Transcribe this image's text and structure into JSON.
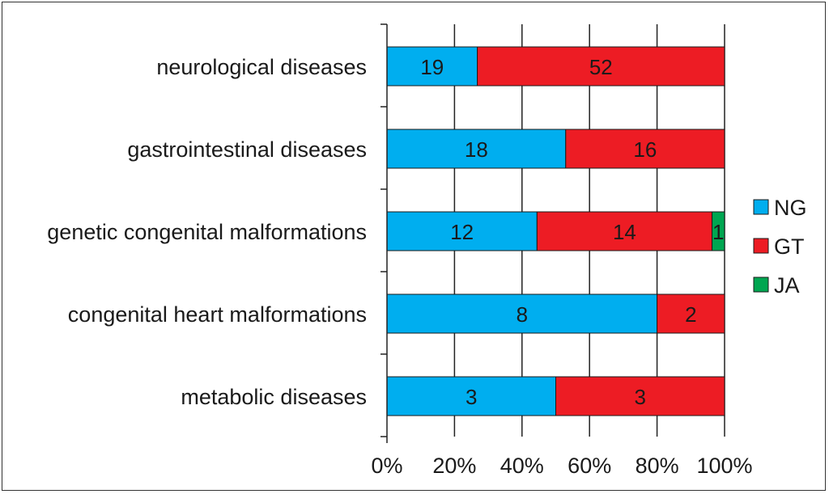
{
  "chart_data": {
    "type": "bar",
    "orientation": "horizontal",
    "stacked": "percent",
    "title": "",
    "xlabel": "",
    "ylabel": "",
    "categories": [
      "neurological diseases",
      "gastrointestinal diseases",
      "genetic congenital malformations",
      "congenital heart malformations",
      "metabolic diseases"
    ],
    "series": [
      {
        "name": "NG",
        "color": "#00aeef",
        "values": [
          19,
          18,
          12,
          8,
          3
        ]
      },
      {
        "name": "GT",
        "color": "#ed1c24",
        "values": [
          52,
          16,
          14,
          2,
          3
        ]
      },
      {
        "name": "JA",
        "color": "#00a651",
        "values": [
          0,
          0,
          1,
          0,
          0
        ]
      }
    ],
    "xlim": [
      0,
      100
    ],
    "xticks": [
      "0%",
      "20%",
      "40%",
      "60%",
      "80%",
      "100%"
    ],
    "grid": "vertical",
    "legend_position": "right"
  }
}
